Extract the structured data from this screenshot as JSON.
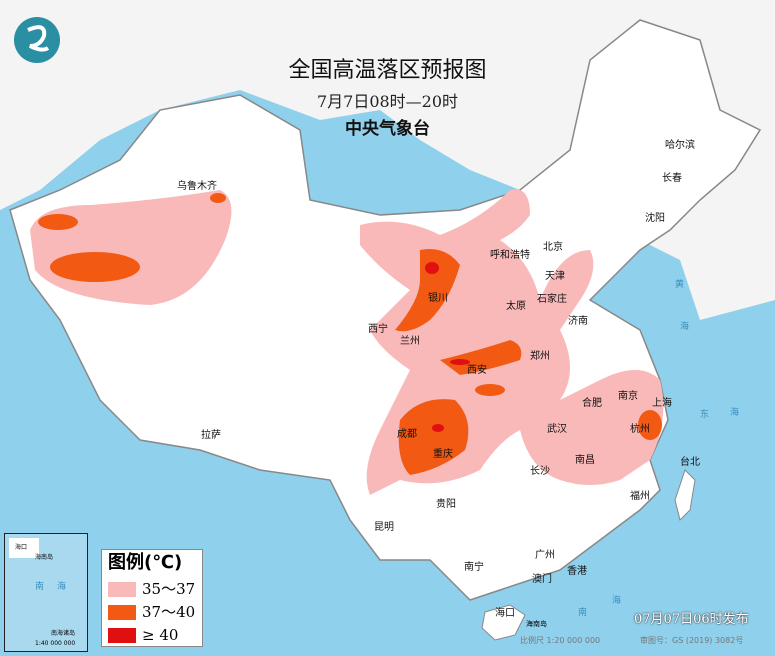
{
  "header": {
    "title": "全国高温落区预报图",
    "valid_time": "7月7日08时—20时",
    "issuer": "中央气象台"
  },
  "legend": {
    "title": "图例(℃)",
    "items": [
      {
        "label": "35～37",
        "color": "#f9b9b9"
      },
      {
        "label": "37～40",
        "color": "#f25a13"
      },
      {
        "label": "≥ 40",
        "color": "#e01010"
      }
    ]
  },
  "cities": [
    "乌鲁木齐",
    "哈尔滨",
    "长春",
    "沈阳",
    "北京",
    "天津",
    "呼和浩特",
    "石家庄",
    "太原",
    "银川",
    "济南",
    "西宁",
    "兰州",
    "郑州",
    "西安",
    "合肥",
    "南京",
    "上海",
    "武汉",
    "杭州",
    "成都",
    "拉萨",
    "重庆",
    "长沙",
    "南昌",
    "贵阳",
    "福州",
    "台北",
    "昆明",
    "广州",
    "南宁",
    "澳门",
    "香港",
    "海口"
  ],
  "sea_labels": [
    "黄",
    "海",
    "东",
    "海",
    "南",
    "海"
  ],
  "inset": {
    "labels": [
      "海口",
      "海南岛",
      "南",
      "海",
      "南海诸岛",
      "1:40 000 000"
    ]
  },
  "footer": {
    "issued": "07月07日06时发布",
    "scale": "比例尺 1:20 000 000",
    "review_no": "审图号：GS (2019) 3082号",
    "island": "海南岛"
  },
  "colors": {
    "sea": "#8fd0ec",
    "land": "#ffffff",
    "neighbor": "#f2f2f2",
    "border": "#888888"
  }
}
